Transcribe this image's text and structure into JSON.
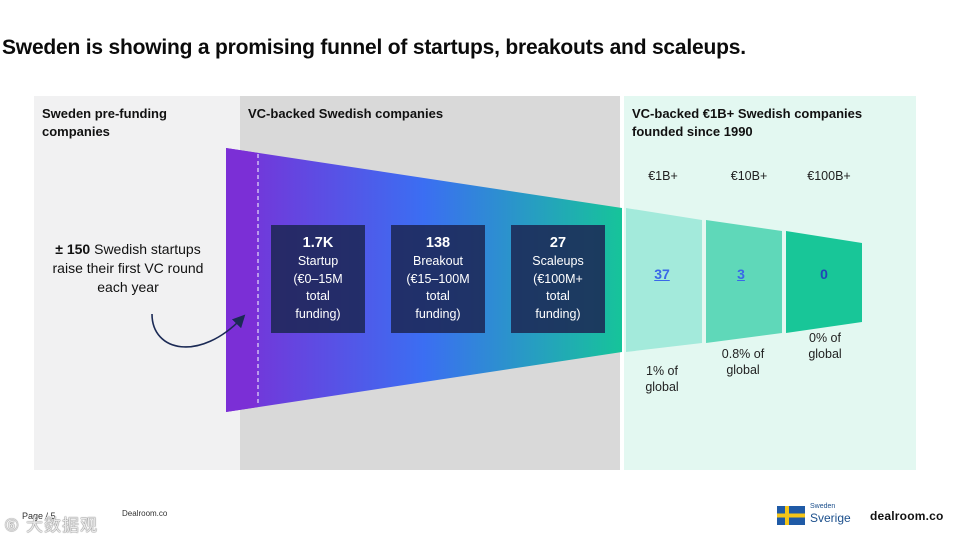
{
  "title": "Sweden is showing a promising funnel of startups, breakouts and scaleups.",
  "panels": {
    "left": {
      "heading": "Sweden pre-funding companies",
      "note_bold": "± 150",
      "note_rest": "Swedish startups raise their first VC round each year"
    },
    "middle": {
      "heading": "VC-backed Swedish companies"
    },
    "right": {
      "heading": "VC-backed €1B+ Swedish companies founded since 1990"
    }
  },
  "stages": [
    {
      "count": "1.7K",
      "name": "Startup",
      "range": "(€0–15M",
      "tail1": "total",
      "tail2": "funding)"
    },
    {
      "count": "138",
      "name": "Breakout",
      "range": "(€15–100M",
      "tail1": "total",
      "tail2": "funding)"
    },
    {
      "count": "27",
      "name": "Scaleups",
      "range": "(€100M+",
      "tail1": "total",
      "tail2": "funding)"
    }
  ],
  "tiers": [
    {
      "label": "€1B+",
      "count": "37",
      "share_line1": "1% of",
      "share_line2": "global"
    },
    {
      "label": "€10B+",
      "count": "3",
      "share_line1": "0.8% of",
      "share_line2": "global"
    },
    {
      "label": "€100B+",
      "count": "0",
      "share_line1": "0% of",
      "share_line2": "global"
    }
  ],
  "footer": {
    "page": "Page / 5",
    "source": "Dealroom.co",
    "watermark": "⑥ 大数据观"
  },
  "logos": {
    "sweden_small": "Sweden",
    "sweden": "Sverige",
    "dealroom": "dealroom.co"
  },
  "colors": {
    "funnel_start": "#7b2fd6",
    "funnel_mid": "#3b6ef2",
    "funnel_end": "#16c49a",
    "tier1": "#a3eadb",
    "tier2": "#5fd8b9",
    "tier3": "#18c698",
    "box_bg": "#1c2654",
    "link_blue": "#3a68e8",
    "flag_blue": "#1f5aa6",
    "flag_yellow": "#f5c518"
  }
}
